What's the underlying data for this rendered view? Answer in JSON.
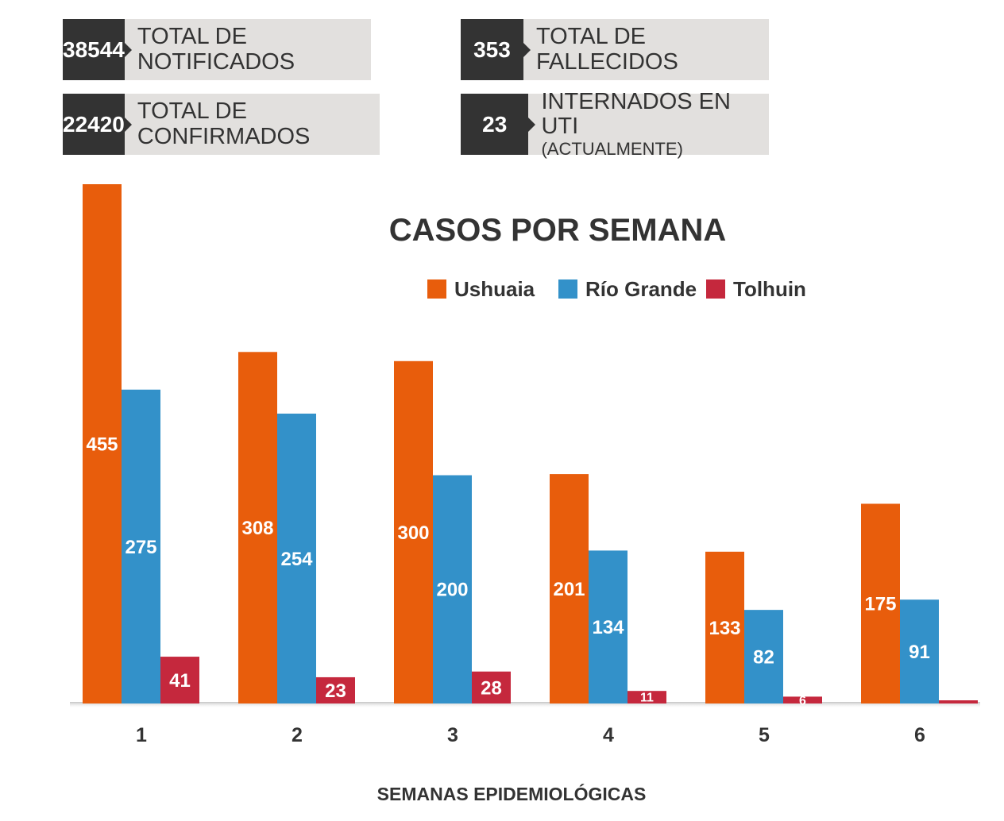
{
  "stats": [
    {
      "value": "38544",
      "label": "TOTAL DE NOTIFICADOS",
      "sub": ""
    },
    {
      "value": "353",
      "label": "TOTAL DE FALLECIDOS",
      "sub": ""
    },
    {
      "value": "22420",
      "label": "TOTAL DE CONFIRMADOS",
      "sub": ""
    },
    {
      "value": "23",
      "label": "INTERNADOS EN UTI",
      "sub": "(ACTUALMENTE)"
    }
  ],
  "chart_data": {
    "type": "bar",
    "title": "CASOS POR SEMANA",
    "xlabel": "SEMANAS EPIDEMIOLÓGICAS",
    "ylabel": "",
    "categories": [
      "1",
      "2",
      "3",
      "4",
      "5",
      "6"
    ],
    "series": [
      {
        "name": "Ushuaia",
        "color": "#e85d0c",
        "values": [
          455,
          308,
          300,
          201,
          133,
          175
        ],
        "labels": [
          "455",
          "308",
          "300",
          "201",
          "133",
          "175"
        ]
      },
      {
        "name": "Río Grande",
        "color": "#3391c9",
        "values": [
          275,
          254,
          200,
          134,
          82,
          91
        ],
        "labels": [
          "275",
          "254",
          "200",
          "134",
          "82",
          "91"
        ]
      },
      {
        "name": "Tolhuin",
        "color": "#c5283d",
        "values": [
          41,
          23,
          28,
          11,
          6,
          1
        ],
        "labels": [
          "41",
          "23",
          "28",
          "11",
          "6",
          ""
        ]
      }
    ],
    "ylim": [
      0,
      455
    ],
    "grid": false,
    "legend_position": "top-right"
  }
}
